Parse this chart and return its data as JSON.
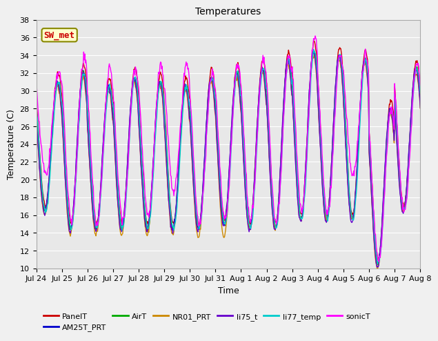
{
  "title": "Temperatures",
  "xlabel": "Time",
  "ylabel": "Temperature (C)",
  "ylim": [
    10,
    38
  ],
  "x_tick_labels": [
    "Jul 24",
    "Jul 25",
    "Jul 26",
    "Jul 27",
    "Jul 28",
    "Jul 29",
    "Jul 30",
    "Jul 31",
    "Aug 1",
    "Aug 2",
    "Aug 3",
    "Aug 4",
    "Aug 5",
    "Aug 6",
    "Aug 7",
    "Aug 8"
  ],
  "series_order": [
    "PanelT",
    "AM25T_PRT",
    "AirT",
    "NR01_PRT",
    "li75_t",
    "li77_temp",
    "sonicT"
  ],
  "series_colors": {
    "PanelT": "#cc0000",
    "AM25T_PRT": "#0000cc",
    "AirT": "#00aa00",
    "NR01_PRT": "#cc8800",
    "li75_t": "#6600cc",
    "li77_temp": "#00cccc",
    "sonicT": "#ff00ff"
  },
  "lw": 1.0,
  "annotation_text": "SW_met",
  "annotation_color": "#cc0000",
  "annotation_bg": "#ffffcc",
  "annotation_edge": "#888800",
  "bg_color": "#e8e8e8",
  "plot_bg": "#f0f0f0",
  "grid_color": "#ffffff",
  "title_fontsize": 10,
  "axis_fontsize": 8,
  "label_fontsize": 9,
  "legend_fontsize": 8
}
